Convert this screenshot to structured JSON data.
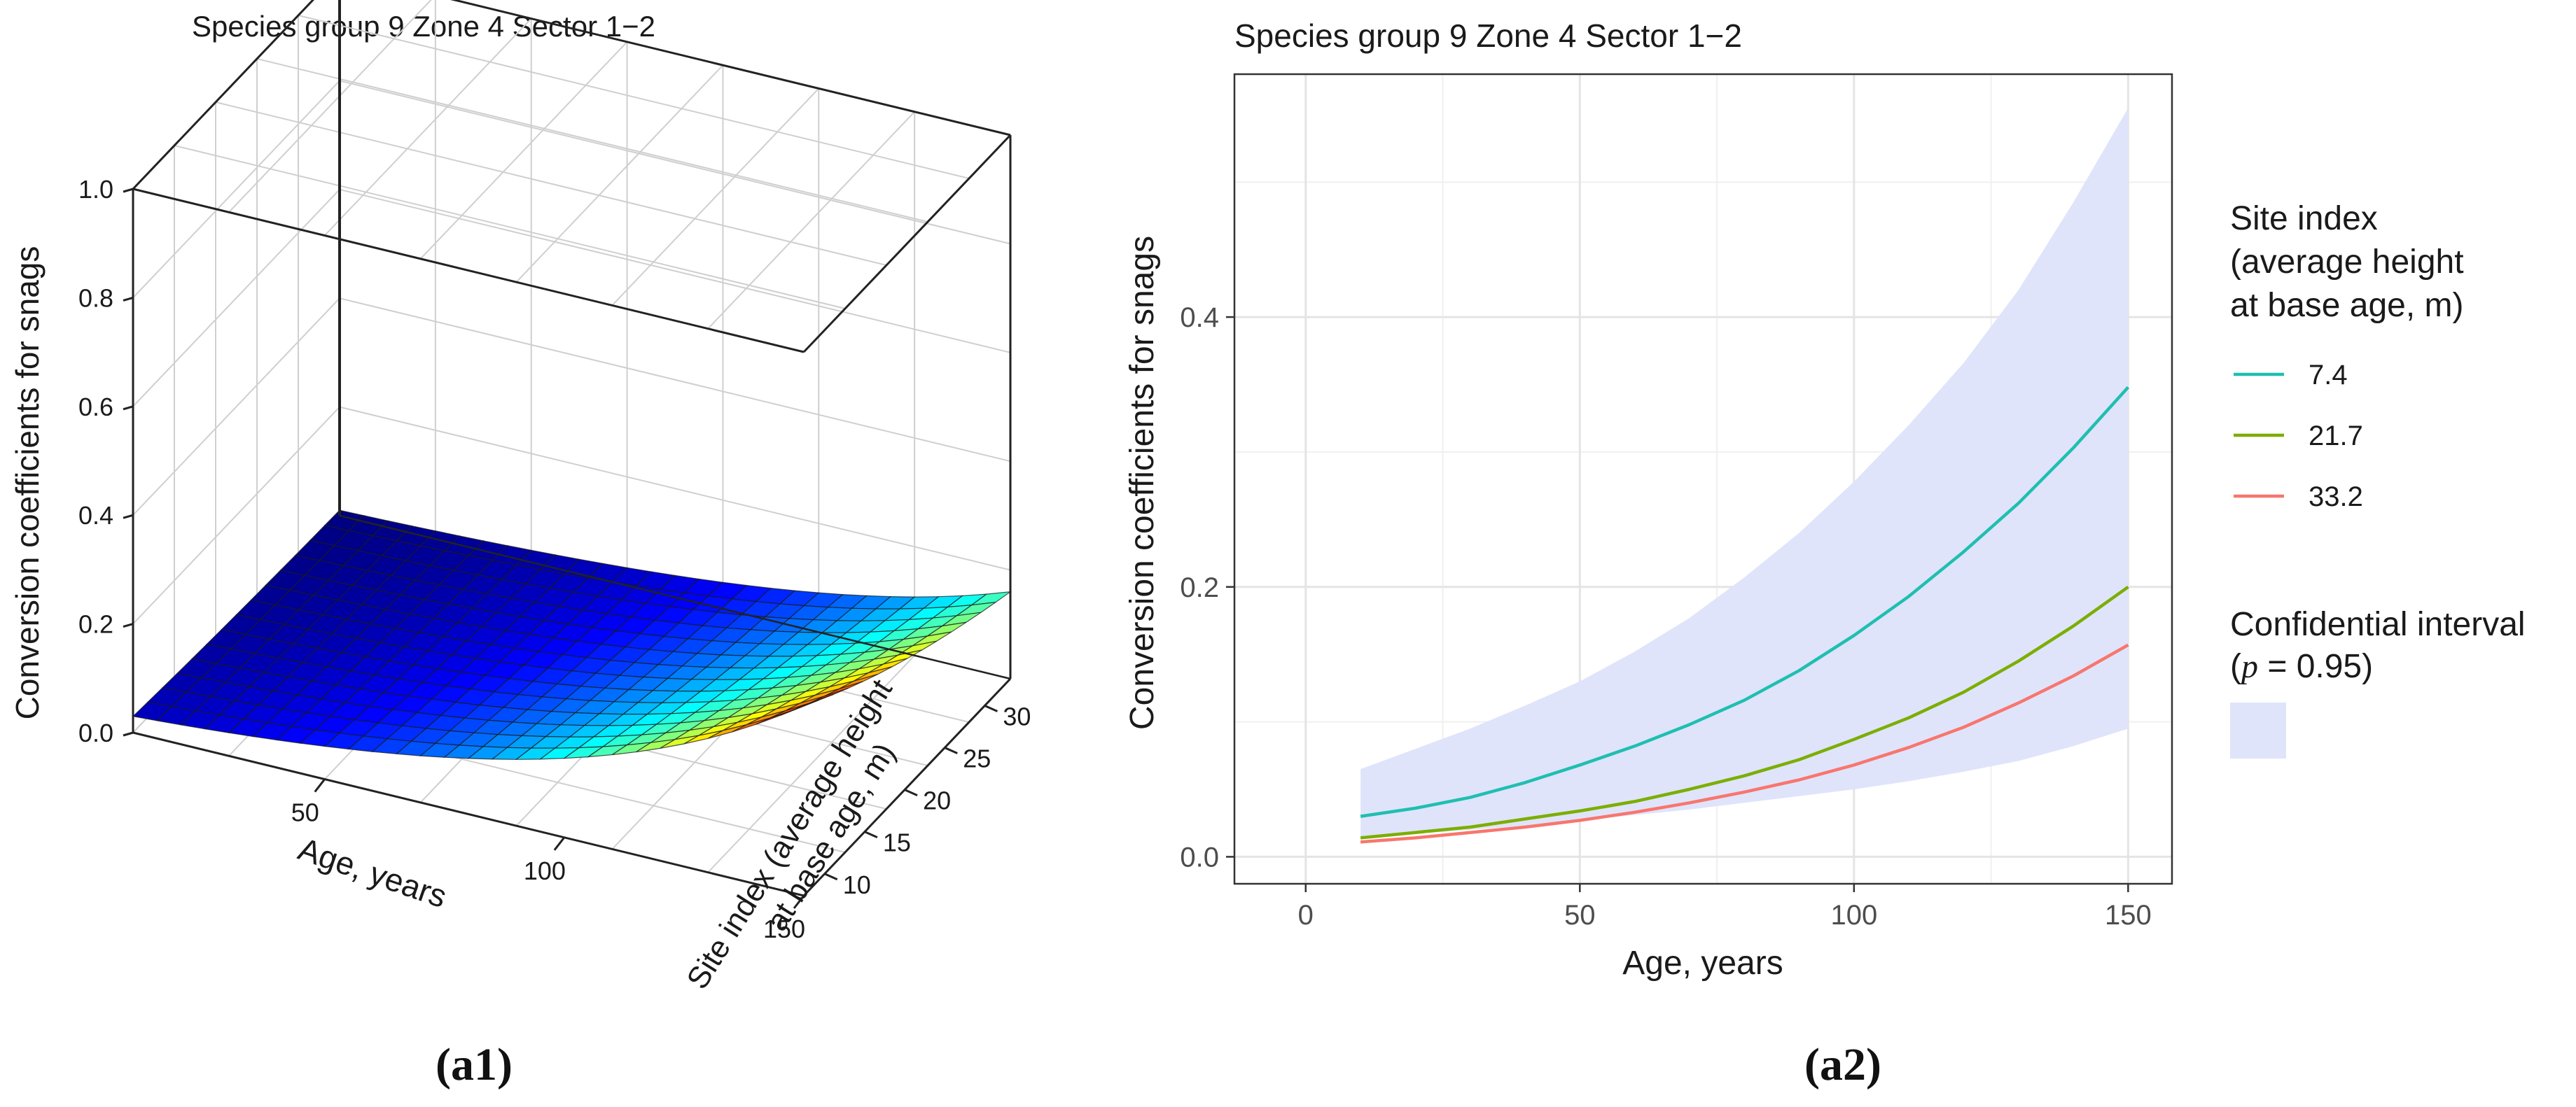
{
  "chart_data": [
    {
      "type": "surface3d",
      "panel_label": "(a1)",
      "title": "Species group 9   Zone 4   Sector 1−2",
      "xlabel": "Age, years",
      "ylabel": "Site index (average height at base age, m)",
      "ylabel_lines": [
        "Site index (average height",
        "at base age, m)"
      ],
      "zlabel": "Conversion coefficients for snags",
      "x_range": [
        10,
        150
      ],
      "y_range": [
        7.4,
        33.2
      ],
      "z_range": [
        0,
        1
      ],
      "x_ticks": [
        "50",
        "100",
        "150"
      ],
      "y_ticks": [
        "10",
        "15",
        "20",
        "25",
        "30"
      ],
      "z_ticks": [
        "0.0",
        "0.2",
        "0.4",
        "0.6",
        "0.8",
        "1.0"
      ],
      "colormap": [
        "#00007f",
        "#0000ff",
        "#007fff",
        "#00ffff",
        "#7fff7f",
        "#ffff00",
        "#ff7f00",
        "#ff0000",
        "#7f0000"
      ],
      "corner_values": {
        "age_10_si_7.4": 0.03,
        "age_150_si_7.4": 0.35,
        "age_10_si_33.2": 0.01,
        "age_150_si_33.2": 0.16
      }
    },
    {
      "type": "line",
      "panel_label": "(a2)",
      "title": "Species group 9   Zone 4   Sector 1−2",
      "xlabel": "Age, years",
      "ylabel": "Conversion coefficients for snags",
      "xlim": [
        -13,
        158
      ],
      "ylim": [
        -0.02,
        0.58
      ],
      "x_ticks": [
        0,
        50,
        100,
        150
      ],
      "x_tick_labels": [
        "0",
        "50",
        "100",
        "150"
      ],
      "y_ticks": [
        0.0,
        0.2,
        0.4
      ],
      "y_tick_labels": [
        "0.0",
        "0.2",
        "0.4"
      ],
      "x": [
        10,
        20,
        30,
        40,
        50,
        60,
        70,
        80,
        90,
        100,
        110,
        120,
        130,
        140,
        150
      ],
      "series": [
        {
          "name": "7.4",
          "color": "#1fbfb0",
          "values": [
            0.03,
            0.036,
            0.044,
            0.055,
            0.068,
            0.082,
            0.098,
            0.116,
            0.138,
            0.164,
            0.193,
            0.226,
            0.262,
            0.303,
            0.348
          ]
        },
        {
          "name": "21.7",
          "color": "#7cae00",
          "values": [
            0.014,
            0.018,
            0.022,
            0.028,
            0.034,
            0.041,
            0.05,
            0.06,
            0.072,
            0.087,
            0.103,
            0.122,
            0.145,
            0.171,
            0.2
          ]
        },
        {
          "name": "33.2",
          "color": "#f8766d",
          "values": [
            0.011,
            0.014,
            0.018,
            0.022,
            0.027,
            0.033,
            0.04,
            0.048,
            0.057,
            0.068,
            0.081,
            0.096,
            0.114,
            0.134,
            0.157
          ]
        }
      ],
      "band": {
        "name": "Confidential interval",
        "color": "#dfe4fb",
        "lower": [
          0.014,
          0.017,
          0.02,
          0.023,
          0.027,
          0.031,
          0.035,
          0.04,
          0.045,
          0.05,
          0.056,
          0.063,
          0.071,
          0.082,
          0.095
        ],
        "upper": [
          0.065,
          0.08,
          0.095,
          0.112,
          0.13,
          0.152,
          0.177,
          0.207,
          0.24,
          0.278,
          0.32,
          0.366,
          0.42,
          0.485,
          0.555
        ]
      },
      "legend": {
        "title_lines": [
          "Site index",
          "(average height",
          "at base age, m)"
        ],
        "band_title_line1": "Confidential interval",
        "band_title_paren_open": "(",
        "band_p_symbol": "p",
        "band_title_rest": " = 0.95)",
        "placement": "right"
      }
    }
  ]
}
